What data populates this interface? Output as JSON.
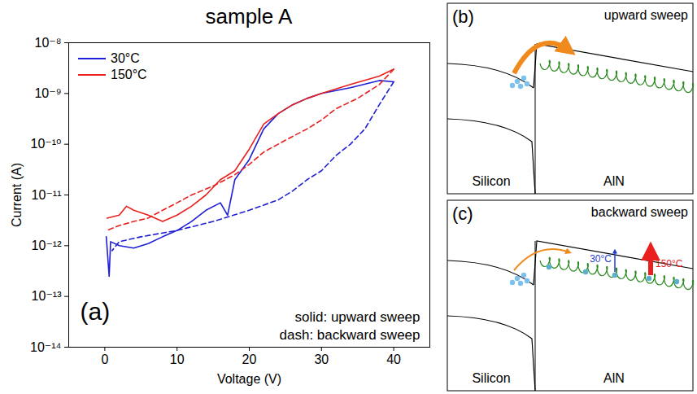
{
  "chart_data": {
    "type": "line",
    "title": "sample A",
    "panel_label": "(a)",
    "x_label": "Voltage (V)",
    "y_label": "Current (A)",
    "xlim": [
      -5,
      45
    ],
    "xticks": [
      0,
      10,
      20,
      30,
      40
    ],
    "ylim": [
      1e-14,
      1e-08
    ],
    "yticks": [
      {
        "value": 1e-14,
        "label": "10⁻¹⁴"
      },
      {
        "value": 1e-13,
        "label": "10⁻¹³"
      },
      {
        "value": 1e-12,
        "label": "10⁻¹²"
      },
      {
        "value": 1e-11,
        "label": "10⁻¹¹"
      },
      {
        "value": 1e-10,
        "label": "10⁻¹⁰"
      },
      {
        "value": 1e-09,
        "label": "10⁻⁹"
      },
      {
        "value": 1e-08,
        "label": "10⁻⁸"
      }
    ],
    "log": "y",
    "legend": "top-left",
    "annotations": [
      "solid: upward sweep",
      "dash: backward sweep"
    ],
    "series": [
      {
        "name": "30°C",
        "color": "#1f1fd6",
        "line_style": "solid",
        "x": [
          0.2,
          0.6,
          0.8,
          2,
          4,
          6,
          8,
          10,
          12,
          14,
          16,
          17,
          18,
          20,
          22,
          24,
          26,
          28,
          30,
          34,
          38,
          40
        ],
        "values": [
          1.5e-12,
          2.5e-13,
          1.2e-12,
          1e-12,
          9e-13,
          1.1e-12,
          1.5e-12,
          2e-12,
          3e-12,
          5e-12,
          7e-12,
          4e-12,
          2e-11,
          5e-11,
          2e-10,
          4e-10,
          6e-10,
          8e-10,
          1e-09,
          1.3e-09,
          1.8e-09,
          1.7e-09
        ]
      },
      {
        "name": "30°C",
        "color": "#1f1fd6",
        "line_style": "dashed",
        "x": [
          40,
          38,
          36,
          34,
          32,
          30,
          28,
          26,
          24,
          20,
          15,
          10,
          5,
          2,
          1
        ],
        "values": [
          1.7e-09,
          6e-10,
          2e-10,
          1e-10,
          6e-11,
          3e-11,
          2e-11,
          1.2e-11,
          8e-12,
          5e-12,
          3e-12,
          2e-12,
          1.5e-12,
          1.2e-12,
          8e-13
        ]
      },
      {
        "name": "150°C",
        "color": "#e8201e",
        "line_style": "solid",
        "x": [
          0.3,
          2,
          3,
          4,
          6,
          8,
          10,
          12,
          14,
          16,
          18,
          20,
          22,
          24,
          26,
          28,
          30,
          34,
          38,
          40
        ],
        "values": [
          3.5e-12,
          4e-12,
          6e-12,
          5e-12,
          4e-12,
          3e-12,
          4e-12,
          6e-12,
          1e-11,
          2e-11,
          3e-11,
          8e-11,
          2.5e-10,
          4e-10,
          6e-10,
          8e-10,
          1e-09,
          1.5e-09,
          2.2e-09,
          3e-09
        ]
      },
      {
        "name": "150°C",
        "color": "#e8201e",
        "line_style": "dashed",
        "x": [
          40,
          38,
          35,
          32,
          30,
          28,
          25,
          22,
          20,
          18,
          15,
          12,
          10,
          8,
          6,
          4,
          2,
          0.3
        ],
        "values": [
          3e-09,
          1.5e-09,
          8e-10,
          5e-10,
          3e-10,
          2e-10,
          1.2e-10,
          7e-11,
          4e-11,
          2.5e-11,
          1.5e-11,
          1e-11,
          7e-12,
          5e-12,
          3.5e-12,
          3e-12,
          2.5e-12,
          2e-12
        ]
      }
    ]
  },
  "diagrams": [
    {
      "label": "(b)",
      "title": "upward sweep",
      "regions": [
        "Silicon",
        "AlN"
      ]
    },
    {
      "label": "(c)",
      "title": "backward sweep",
      "regions": [
        "Silicon",
        "AlN"
      ],
      "annotations": [
        {
          "text": "30°C",
          "color": "#1f3fc8"
        },
        {
          "text": "150°C",
          "color": "#e8201e"
        }
      ]
    }
  ]
}
